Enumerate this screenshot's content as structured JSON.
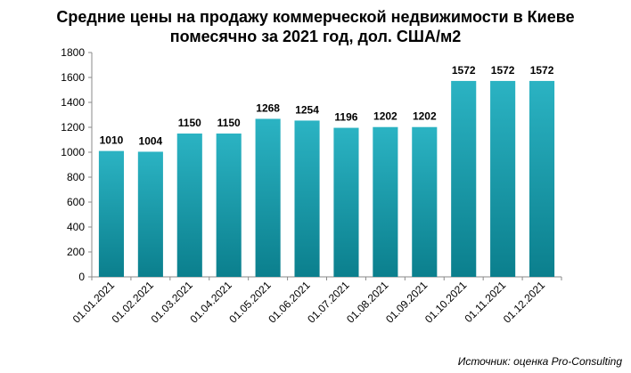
{
  "chart_data": {
    "type": "bar",
    "title_lines": [
      "Средние цены на продажу коммерческой недвижимости в Киеве",
      "помесячно за 2021 год, дол. США/м2"
    ],
    "categories": [
      "01.01.2021",
      "01.02.2021",
      "01.03.2021",
      "01.04.2021",
      "01.05.2021",
      "01.06.2021",
      "01.07.2021",
      "01.08.2021",
      "01.09.2021",
      "01.10.2021",
      "01.11.2021",
      "01.12.2021"
    ],
    "values": [
      1010,
      1004,
      1150,
      1150,
      1268,
      1254,
      1196,
      1202,
      1202,
      1572,
      1572,
      1572
    ],
    "yticks": [
      0,
      200,
      400,
      600,
      800,
      1000,
      1200,
      1400,
      1600,
      1800
    ],
    "ylim": [
      0,
      1800
    ],
    "grid": false,
    "legend": "none",
    "xlabel": "",
    "ylabel": "",
    "bar_color_top": "#2bb3c3",
    "bar_color_bottom": "#0b7f8d",
    "source": "Источник: оценка Pro-Consulting"
  }
}
